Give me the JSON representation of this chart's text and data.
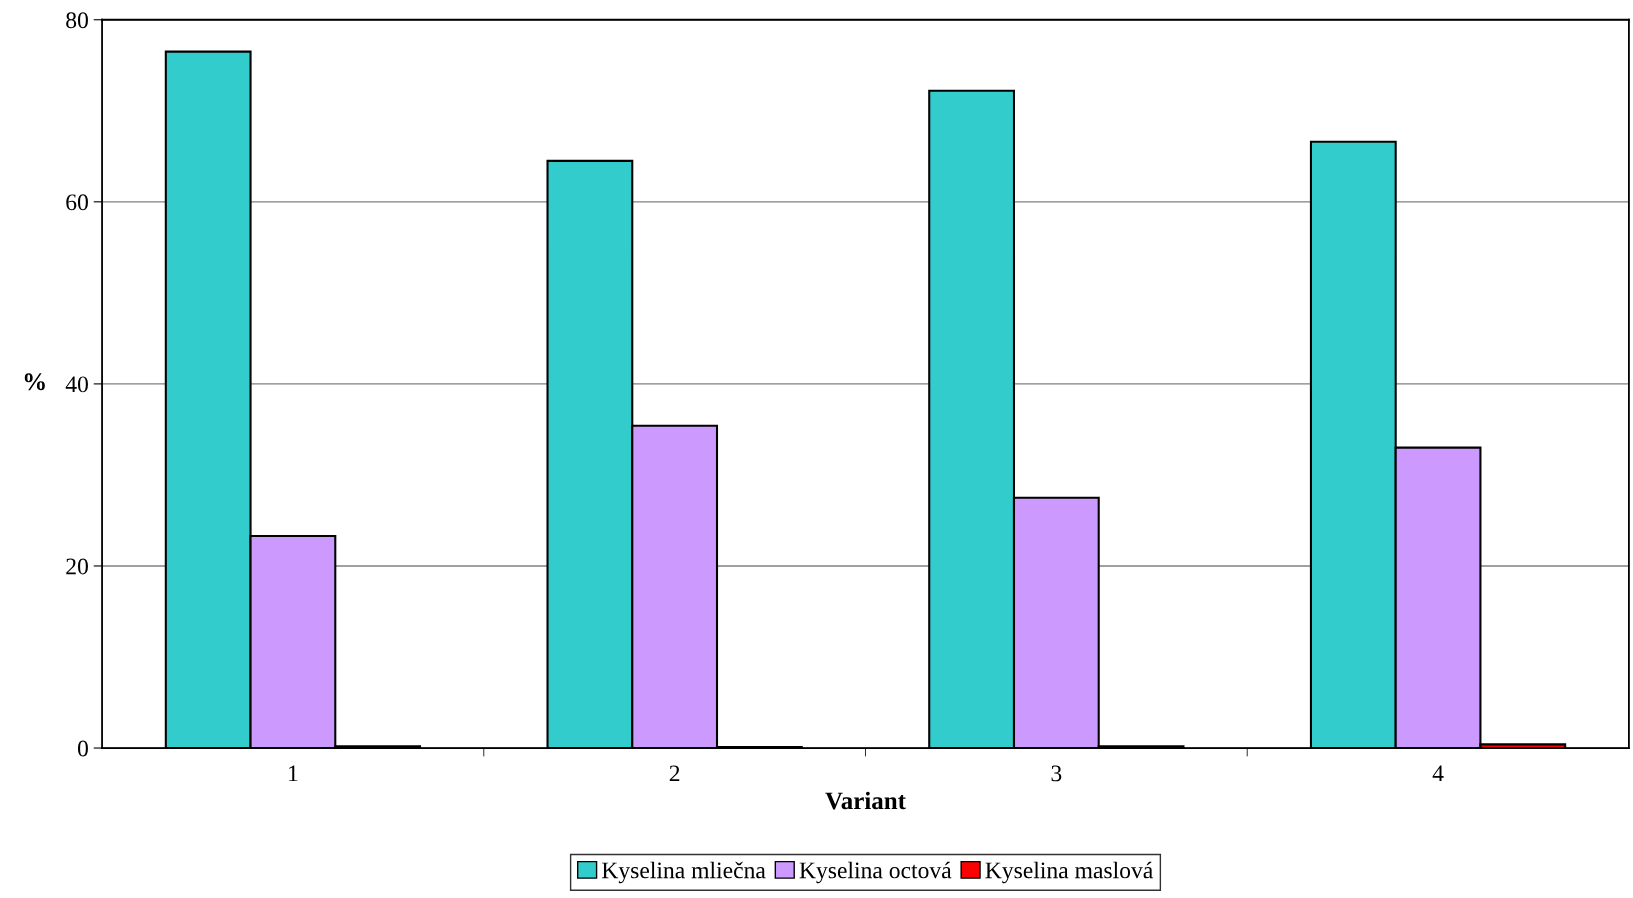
{
  "chart_data": {
    "type": "bar",
    "xlabel": "Variant",
    "ylabel": "%",
    "categories": [
      "1",
      "2",
      "3",
      "4"
    ],
    "series": [
      {
        "name": "Kyselina mliečna",
        "color": "#33cccc",
        "values": [
          76.5,
          64.5,
          72.2,
          66.6
        ]
      },
      {
        "name": "Kyselina octová",
        "color": "#cc99ff",
        "values": [
          23.3,
          35.4,
          27.5,
          33.0
        ]
      },
      {
        "name": "Kyselina maslová",
        "color": "#ff0000",
        "values": [
          0.2,
          0.1,
          0.2,
          0.4
        ]
      }
    ],
    "ylim": [
      0,
      80
    ],
    "yticks": [
      0,
      20,
      40,
      60,
      80
    ],
    "grid": "y",
    "legend": "bottom"
  }
}
